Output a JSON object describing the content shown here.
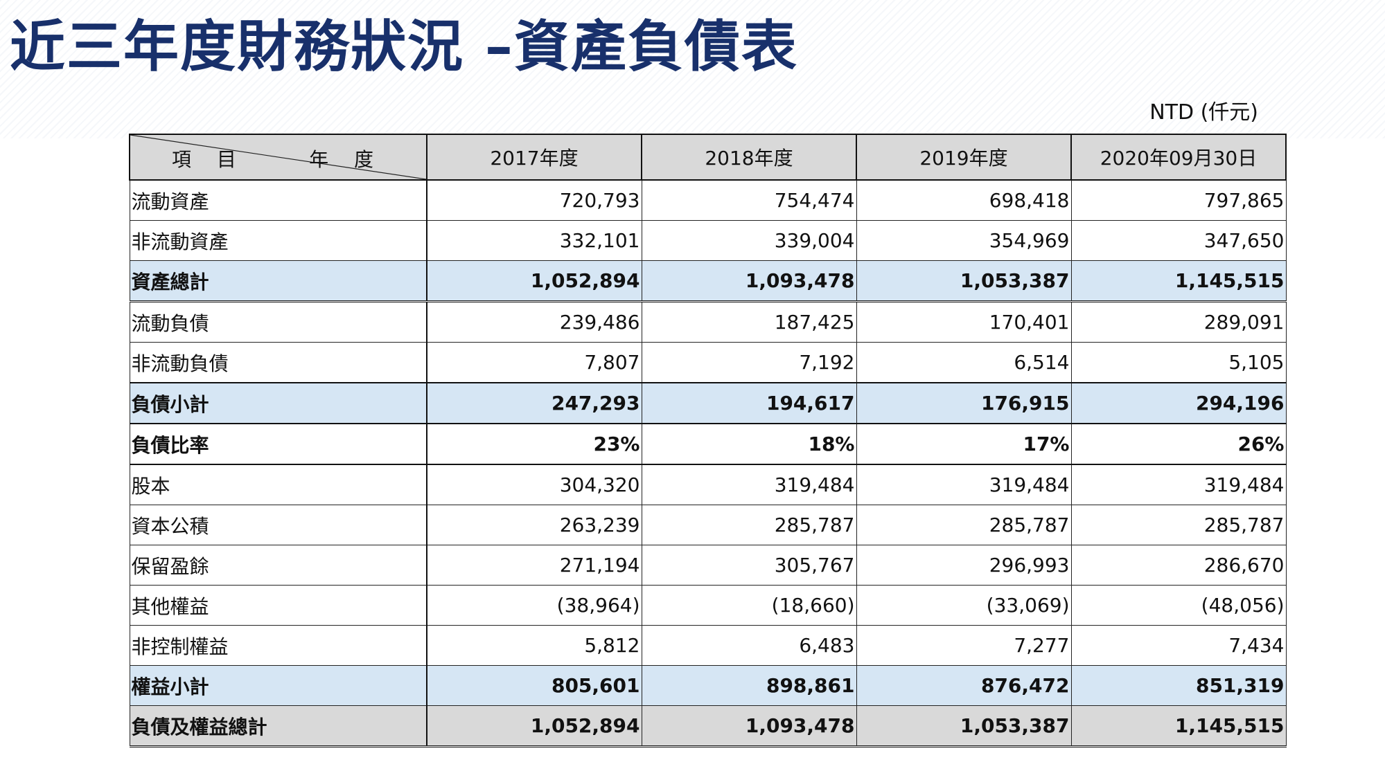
{
  "title": "近三年度財務狀況 –資產負債表",
  "unit": "NTD (仟元)",
  "table": {
    "corner_item": "項 目",
    "corner_year": "年 度",
    "columns": [
      "2017年度",
      "2018年度",
      "2019年度",
      "2020年09月30日"
    ],
    "rows": [
      {
        "label": "流動資產",
        "values": [
          "720,793",
          "754,474",
          "698,418",
          "797,865"
        ],
        "style": "normal"
      },
      {
        "label": "非流動資產",
        "values": [
          "332,101",
          "339,004",
          "354,969",
          "347,650"
        ],
        "style": "normal"
      },
      {
        "label": "資產總計",
        "values": [
          "1,052,894",
          "1,093,478",
          "1,053,387",
          "1,145,515"
        ],
        "style": "total"
      },
      {
        "label": "流動負債",
        "values": [
          "239,486",
          "187,425",
          "170,401",
          "289,091"
        ],
        "style": "normal"
      },
      {
        "label": "非流動負債",
        "values": [
          "7,807",
          "7,192",
          "6,514",
          "5,105"
        ],
        "style": "normal"
      },
      {
        "label": "負債小計",
        "values": [
          "247,293",
          "194,617",
          "176,915",
          "294,196"
        ],
        "style": "total"
      },
      {
        "label": "負債比率",
        "values": [
          "23%",
          "18%",
          "17%",
          "26%"
        ],
        "style": "bold"
      },
      {
        "label": "股本",
        "values": [
          "304,320",
          "319,484",
          "319,484",
          "319,484"
        ],
        "style": "normal"
      },
      {
        "label": "資本公積",
        "values": [
          "263,239",
          "285,787",
          "285,787",
          "285,787"
        ],
        "style": "normal"
      },
      {
        "label": "保留盈餘",
        "values": [
          "271,194",
          "305,767",
          "296,993",
          "286,670"
        ],
        "style": "normal"
      },
      {
        "label": "其他權益",
        "values": [
          "(38,964)",
          "(18,660)",
          "(33,069)",
          "(48,056)"
        ],
        "style": "normal"
      },
      {
        "label": "非控制權益",
        "values": [
          "5,812",
          "6,483",
          "7,277",
          "7,434"
        ],
        "style": "normal"
      },
      {
        "label": "權益小計",
        "values": [
          "805,601",
          "898,861",
          "876,472",
          "851,319"
        ],
        "style": "total"
      },
      {
        "label": "負債及權益總計",
        "values": [
          "1,052,894",
          "1,093,478",
          "1,053,387",
          "1,145,515"
        ],
        "style": "grand"
      }
    ]
  },
  "colors": {
    "title": "#18306b",
    "header_bg": "#d9d9d9",
    "total_bg": "#d6e6f4",
    "grand_bg": "#d9d9d9"
  }
}
